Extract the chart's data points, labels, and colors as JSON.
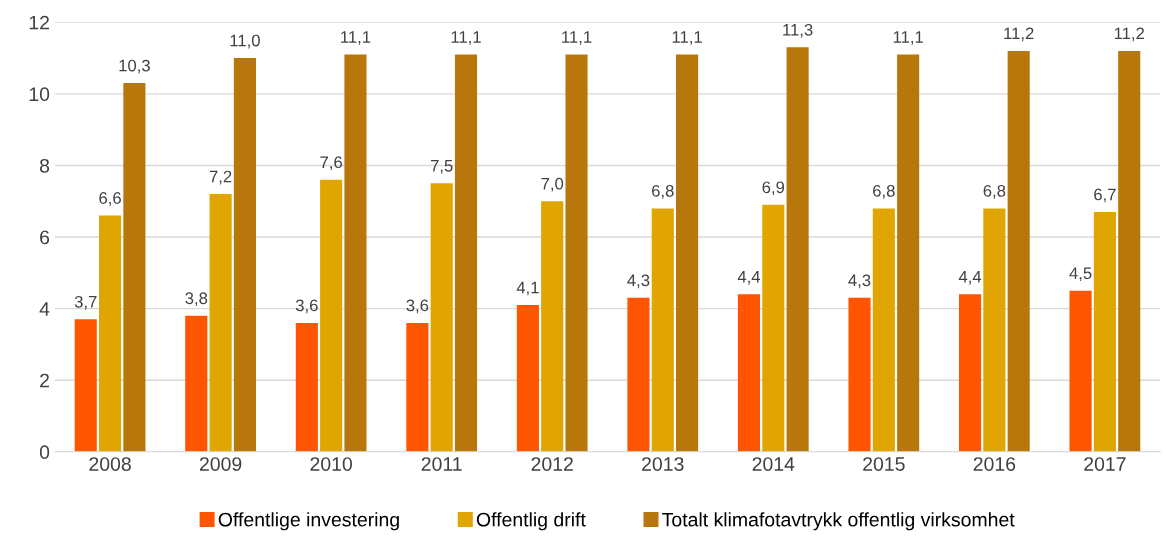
{
  "chart_data": {
    "type": "bar",
    "categories": [
      "2008",
      "2009",
      "2010",
      "2011",
      "2012",
      "2013",
      "2014",
      "2015",
      "2016",
      "2017"
    ],
    "series": [
      {
        "name": "Offentlige investering",
        "color": "#ff5500",
        "values": [
          3.7,
          3.8,
          3.6,
          3.6,
          4.1,
          4.3,
          4.4,
          4.3,
          4.4,
          4.5
        ],
        "value_labels": [
          "3,7",
          "3,8",
          "3,6",
          "3,6",
          "4,1",
          "4,3",
          "4,4",
          "4,3",
          "4,4",
          "4,5"
        ]
      },
      {
        "name": "Offentlig drift",
        "color": "#e0a500",
        "values": [
          6.6,
          7.2,
          7.6,
          7.5,
          7.0,
          6.8,
          6.9,
          6.8,
          6.8,
          6.7
        ],
        "value_labels": [
          "6,6",
          "7,2",
          "7,6",
          "7,5",
          "7,0",
          "6,8",
          "6,9",
          "6,8",
          "6,8",
          "6,7"
        ]
      },
      {
        "name": "Totalt klimafotavtrykk offentlig virksomhet",
        "color": "#b8770b",
        "values": [
          10.3,
          11.0,
          11.1,
          11.1,
          11.1,
          11.1,
          11.3,
          11.1,
          11.2,
          11.2
        ],
        "value_labels": [
          "10,3",
          "11,0",
          "11,1",
          "11,1",
          "11,1",
          "11,1",
          "11,3",
          "11,1",
          "11,2",
          "11,2"
        ]
      }
    ],
    "ylim": [
      0,
      12
    ],
    "yticks": [
      0,
      2,
      4,
      6,
      8,
      10,
      12
    ],
    "grid": "y",
    "legend": "bottom"
  }
}
